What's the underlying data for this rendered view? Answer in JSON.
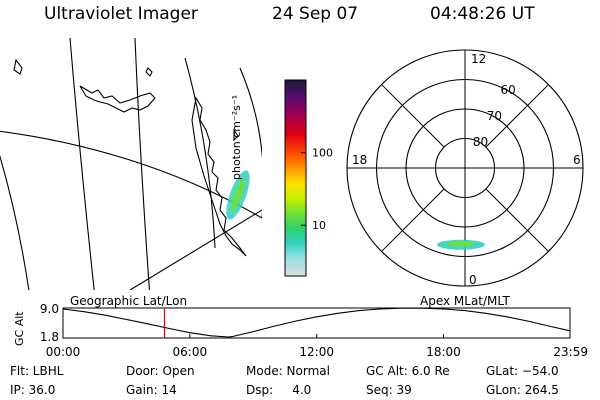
{
  "header": {
    "instrument": "Ultraviolet Imager",
    "date": "24 Sep 07",
    "time": "04:48:26 UT"
  },
  "panels": {
    "geo_label": "Geographic Lat/Lon",
    "apex_label": "Apex MLat/MLT"
  },
  "colorbar": {
    "unit_label": "photon cm⁻²s⁻¹",
    "ticks": [
      {
        "label": "100",
        "value": 100
      },
      {
        "label": "10",
        "value": 10
      }
    ],
    "colors": [
      "#1a1a3a",
      "#5a0a70",
      "#a00050",
      "#e00010",
      "#ff5000",
      "#ffa000",
      "#ffe000",
      "#c8f000",
      "#70e030",
      "#30d070",
      "#30d0c0",
      "#90e0e0",
      "#dddddd"
    ]
  },
  "polar": {
    "mlt_labels": [
      {
        "label": "12",
        "mlt": 12
      },
      {
        "label": "18",
        "mlt": 18
      },
      {
        "label": "6",
        "mlt": 6
      },
      {
        "label": "0",
        "mlt": 0
      }
    ],
    "lat_labels": [
      {
        "label": "80",
        "mlat": 80
      },
      {
        "label": "70",
        "mlat": 70
      },
      {
        "label": "60",
        "mlat": 60
      }
    ]
  },
  "chart_data": {
    "type": "line",
    "title": "",
    "ylabel": "GC Alt",
    "yticks": [
      "9.0",
      "1.8"
    ],
    "ylim": [
      1.8,
      9.0
    ],
    "xlim": [
      "00:00",
      "23:59"
    ],
    "xticks": [
      "00:00",
      "06:00",
      "12:00",
      "18:00",
      "23:59"
    ],
    "x": [
      "00:00",
      "01:00",
      "02:00",
      "03:00",
      "04:00",
      "05:00",
      "06:00",
      "07:00",
      "07:50",
      "08:00",
      "09:00",
      "10:00",
      "11:00",
      "12:00",
      "13:00",
      "14:00",
      "15:00",
      "16:00",
      "17:00",
      "18:00",
      "19:00",
      "20:00",
      "21:00",
      "22:00",
      "23:00",
      "23:59"
    ],
    "y": [
      9.0,
      8.3,
      7.4,
      6.3,
      5.2,
      4.0,
      2.9,
      2.1,
      1.8,
      1.9,
      3.2,
      4.6,
      5.9,
      7.0,
      7.9,
      8.6,
      9.0,
      9.2,
      9.2,
      9.0,
      8.6,
      7.9,
      7.0,
      5.9,
      4.6,
      3.4
    ],
    "marker": "04:48"
  },
  "status": {
    "flt": "Flt: LBHL",
    "ip": "IP: 36.0",
    "door": "Door: Open",
    "gain": "Gain: 14",
    "mode": "Mode: Normal",
    "dsp": "Dsp:     4.0",
    "gcalt": "GC Alt: 6.0 Re",
    "seq": "Seq: 39",
    "glat": "GLat: −54.0",
    "glon": "GLon: 264.5"
  }
}
